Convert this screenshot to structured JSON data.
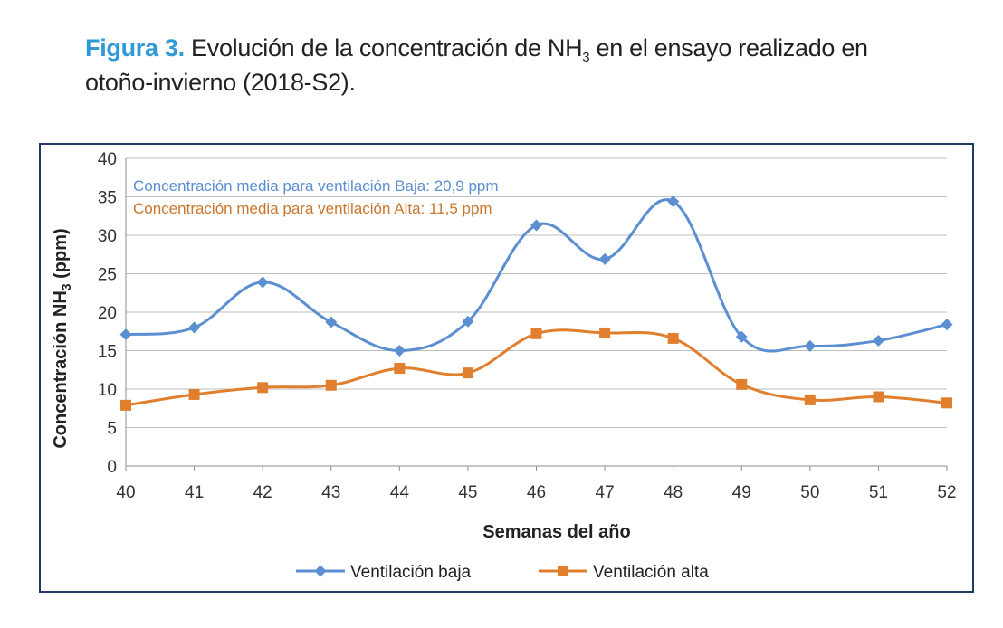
{
  "caption": {
    "figure_label": "Figura 3.",
    "text_before": "Evolución de la concentración de NH",
    "subscript": "3",
    "text_after": " en el ensayo realizado en otoño-invierno (2018-S2)."
  },
  "chart_data": {
    "type": "line",
    "xlabel": "Semanas del año",
    "ylabel_main": "Concentración NH",
    "ylabel_sub": "3",
    "ylabel_unit": " (ppm)",
    "categories": [
      "40",
      "41",
      "42",
      "43",
      "44",
      "45",
      "46",
      "47",
      "48",
      "49",
      "50",
      "51",
      "52"
    ],
    "ylim": [
      0,
      40
    ],
    "yticks": [
      "0",
      "5",
      "10",
      "15",
      "20",
      "25",
      "30",
      "35",
      "40"
    ],
    "grid": true,
    "legend_position": "bottom",
    "series": [
      {
        "name": "Ventilación baja",
        "color": "#5b8fd1",
        "marker": "diamond",
        "values": [
          17.1,
          18.0,
          23.9,
          18.7,
          15.0,
          18.8,
          31.3,
          26.9,
          34.4,
          16.8,
          15.6,
          16.3,
          18.4
        ]
      },
      {
        "name": "Ventilación alta",
        "color": "#e07f2e",
        "marker": "square",
        "values": [
          7.9,
          9.3,
          10.2,
          10.5,
          12.7,
          12.1,
          17.2,
          17.3,
          16.6,
          10.6,
          8.6,
          9.0,
          8.2
        ]
      }
    ],
    "annotations": [
      {
        "text": "Concentración  media para ventilación Baja: 20,9 ppm",
        "color": "#5b8fd1"
      },
      {
        "text": "Concentración media para ventilación Alta: 11,5 ppm",
        "color": "#c9772e"
      }
    ]
  }
}
